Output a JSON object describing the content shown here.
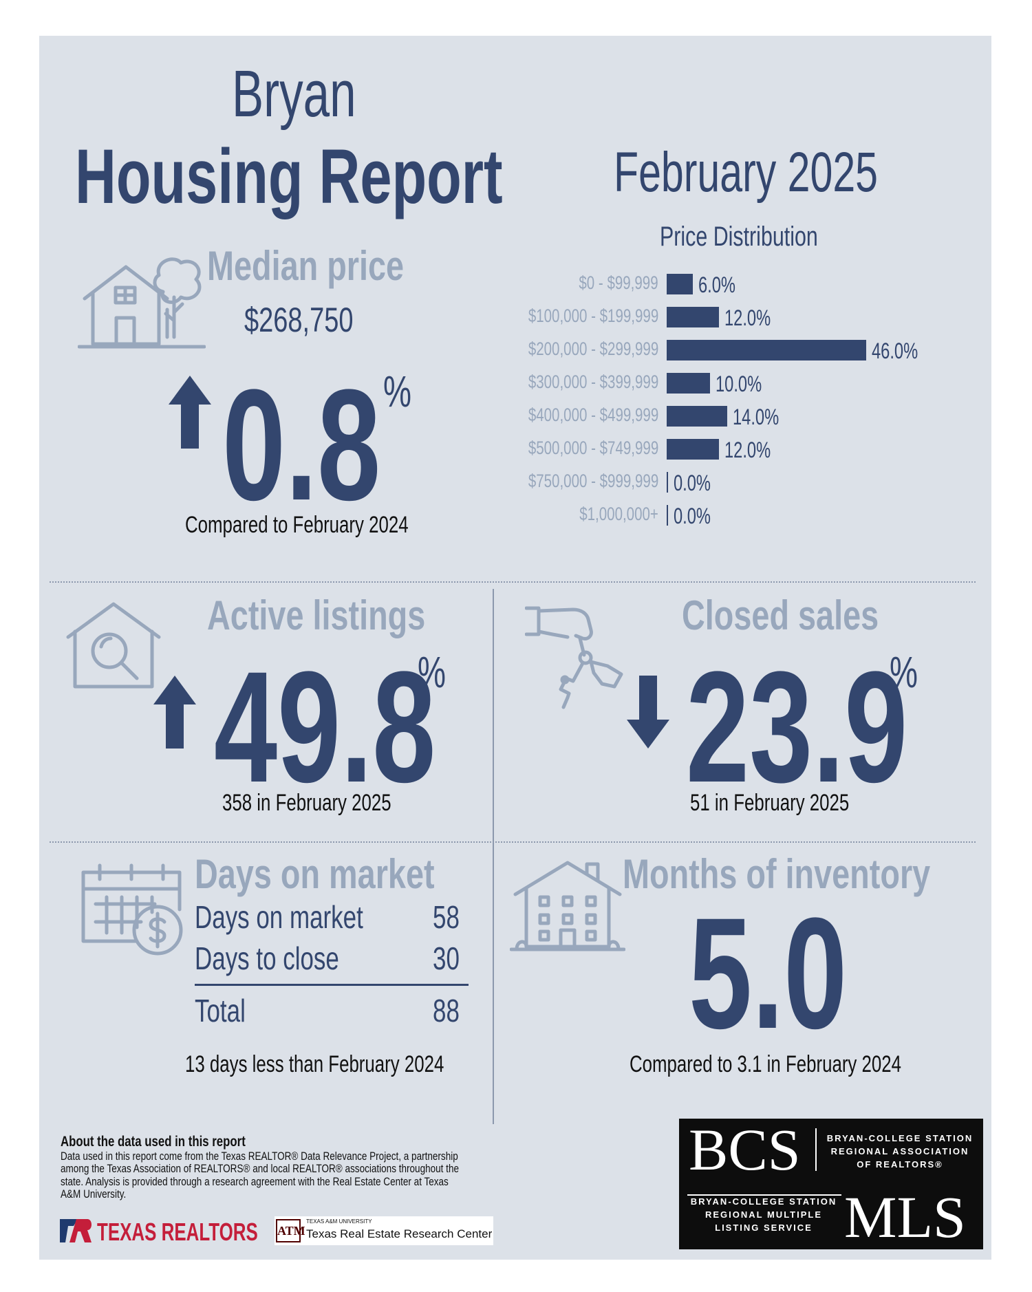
{
  "header": {
    "city": "Bryan",
    "report_title": "Housing Report",
    "month": "February 2025"
  },
  "median_price": {
    "label": "Median price",
    "value": "$268,750",
    "change": "0.8",
    "percent_sign": "%",
    "direction": "up",
    "comparison": "Compared to February 2024"
  },
  "price_distribution": {
    "title": "Price Distribution",
    "chart_data": {
      "type": "bar",
      "orientation": "horizontal",
      "title": "Price Distribution",
      "categories": [
        "$0 - $99,999",
        "$100,000 - $199,999",
        "$200,000 - $299,999",
        "$300,000 - $399,999",
        "$400,000 - $499,999",
        "$500,000 - $749,999",
        "$750,000 - $999,999",
        "$1,000,000+"
      ],
      "values": [
        6.0,
        12.0,
        46.0,
        10.0,
        14.0,
        12.0,
        0.0,
        0.0
      ],
      "value_labels": [
        "6.0%",
        "12.0%",
        "46.0%",
        "10.0%",
        "14.0%",
        "12.0%",
        "0.0%",
        "0.0%"
      ],
      "xlim": [
        0,
        46
      ]
    }
  },
  "active_listings": {
    "label": "Active listings",
    "change": "49.8",
    "percent_sign": "%",
    "direction": "up",
    "caption": "358 in February 2025"
  },
  "closed_sales": {
    "label": "Closed sales",
    "change": "23.9",
    "percent_sign": "%",
    "direction": "down",
    "caption": "51 in February 2025"
  },
  "days_on_market": {
    "label": "Days on market",
    "rows": [
      {
        "label": "Days on market",
        "value": "58"
      },
      {
        "label": "Days to close",
        "value": "30"
      }
    ],
    "total_label": "Total",
    "total_value": "88",
    "caption": "13 days less than February 2024"
  },
  "months_inventory": {
    "label": "Months of inventory",
    "value": "5.0",
    "caption": "Compared to 3.1 in February 2024"
  },
  "about": {
    "title": "About the data used in this report",
    "body": "Data used in this report come from the Texas REALTOR® Data Relevance Project, a partnership among the Texas Association of REALTORS® and local REALTOR® associations throughout the state. Analysis is provided through a research agreement with the Real Estate Center at Texas A&M University."
  },
  "logos": {
    "texas_realtors": "TEXAS REALTORS",
    "tamu_small": "TEXAS A&M UNIVERSITY",
    "tamu_center": "Texas Real Estate Research Center",
    "bcs": "BCS",
    "bcs_assoc_1": "BRYAN-COLLEGE STATION",
    "bcs_assoc_2": "REGIONAL ASSOCIATION",
    "bcs_assoc_3": "OF REALTORS®",
    "mls_1": "BRYAN-COLLEGE STATION",
    "mls_2": "REGIONAL MULTIPLE",
    "mls_3": "LISTING SERVICE",
    "mls": "MLS"
  },
  "colors": {
    "background": "#dce1e8",
    "navy": "#33466e",
    "light_label": "#98a7bc"
  }
}
